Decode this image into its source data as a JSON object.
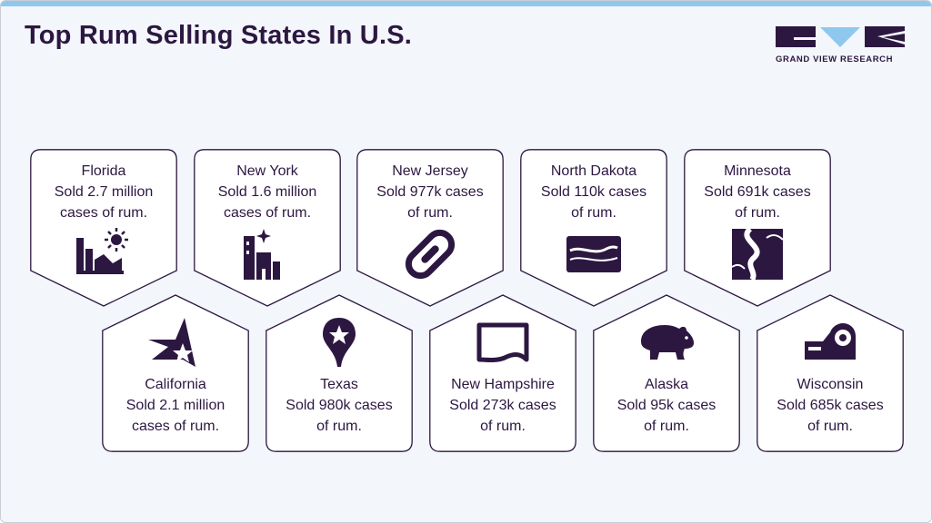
{
  "header": {
    "title": "Top Rum Selling States In U.S.",
    "logo_text": "GRAND VIEW RESEARCH"
  },
  "colors": {
    "primary": "#2c1741",
    "accent": "#8fc8ef",
    "card_fill": "#ffffff"
  },
  "cards": [
    {
      "state": "Florida",
      "line1": "Sold 2.7 million",
      "line2": "cases of rum.",
      "icon": "florida-landmark-sun-icon"
    },
    {
      "state": "New York",
      "line1": "Sold 1.6 million",
      "line2": "cases of rum.",
      "icon": "new-york-city-night-icon"
    },
    {
      "state": "New Jersey",
      "line1": "Sold 977k cases",
      "line2": "of rum.",
      "icon": "new-jersey-chain-link-icon"
    },
    {
      "state": "North Dakota",
      "line1": "Sold 110k cases",
      "line2": "of rum.",
      "icon": "north-dakota-river-map-icon"
    },
    {
      "state": "Minnesota",
      "line1": "Sold 691k cases",
      "line2": "of rum.",
      "icon": "minnesota-river-landscape-icon"
    },
    {
      "state": "California",
      "line1": "Sold 2.1 million",
      "line2": "cases of rum.",
      "icon": "california-star-icon"
    },
    {
      "state": "Texas",
      "line1": "Sold 980k cases",
      "line2": "of rum.",
      "icon": "texas-star-map-pin-icon"
    },
    {
      "state": "New Hampshire",
      "line1": "Sold 273k cases",
      "line2": "of rum.",
      "icon": "new-hampshire-outline-icon"
    },
    {
      "state": "Alaska",
      "line1": "Sold 95k cases",
      "line2": "of rum.",
      "icon": "alaska-bear-icon"
    },
    {
      "state": "Wisconsin",
      "line1": "Sold 685k cases",
      "line2": "of rum.",
      "icon": "wisconsin-tape-dispenser-icon"
    }
  ]
}
